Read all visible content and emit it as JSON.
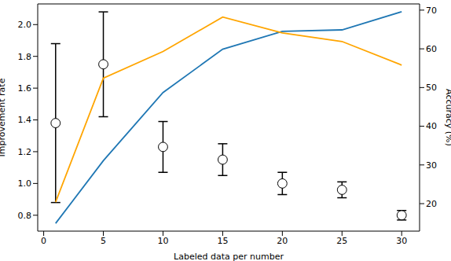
{
  "chart_data": {
    "type": "line",
    "x_label": "Labeled data per number",
    "y_label": "Improvement rate",
    "y2_label": "Accuracy (%)",
    "x": [
      1,
      5,
      10,
      15,
      20,
      25,
      30
    ],
    "xlim": [
      -0.5,
      31.5
    ],
    "xticks": [
      0,
      5,
      10,
      15,
      20,
      25,
      30
    ],
    "ylim": [
      0.7,
      2.13
    ],
    "yticks": [
      0.8,
      {
        "value": 1,
        "label": "1.0"
      },
      1.2,
      1.4,
      1.6,
      1.8,
      {
        "value": 2,
        "label": "2.0"
      }
    ],
    "y2lim": [
      12.9,
      71.6
    ],
    "y2ticks": [
      20,
      30,
      40,
      50,
      60,
      70
    ],
    "grid": false,
    "series": [
      {
        "type": "scatter",
        "color": "#000000",
        "marker": "o",
        "values": [
          1.38,
          1.75,
          1.23,
          1.15,
          1.0,
          0.96,
          0.8
        ],
        "errors": [
          0.5,
          0.33,
          0.16,
          0.1,
          0.07,
          0.05,
          0.03
        ]
      },
      {
        "type": "line",
        "axis": "y2",
        "color": "#1f77b4",
        "values": [
          14.9,
          31.1,
          48.7,
          59.9,
          64.5,
          64.9,
          69.6
        ]
      },
      {
        "type": "line",
        "axis": "y2",
        "color": "#ffa500",
        "values": [
          20.4,
          52.4,
          59.3,
          68.2,
          64.1,
          61.9,
          55.8
        ]
      }
    ]
  }
}
